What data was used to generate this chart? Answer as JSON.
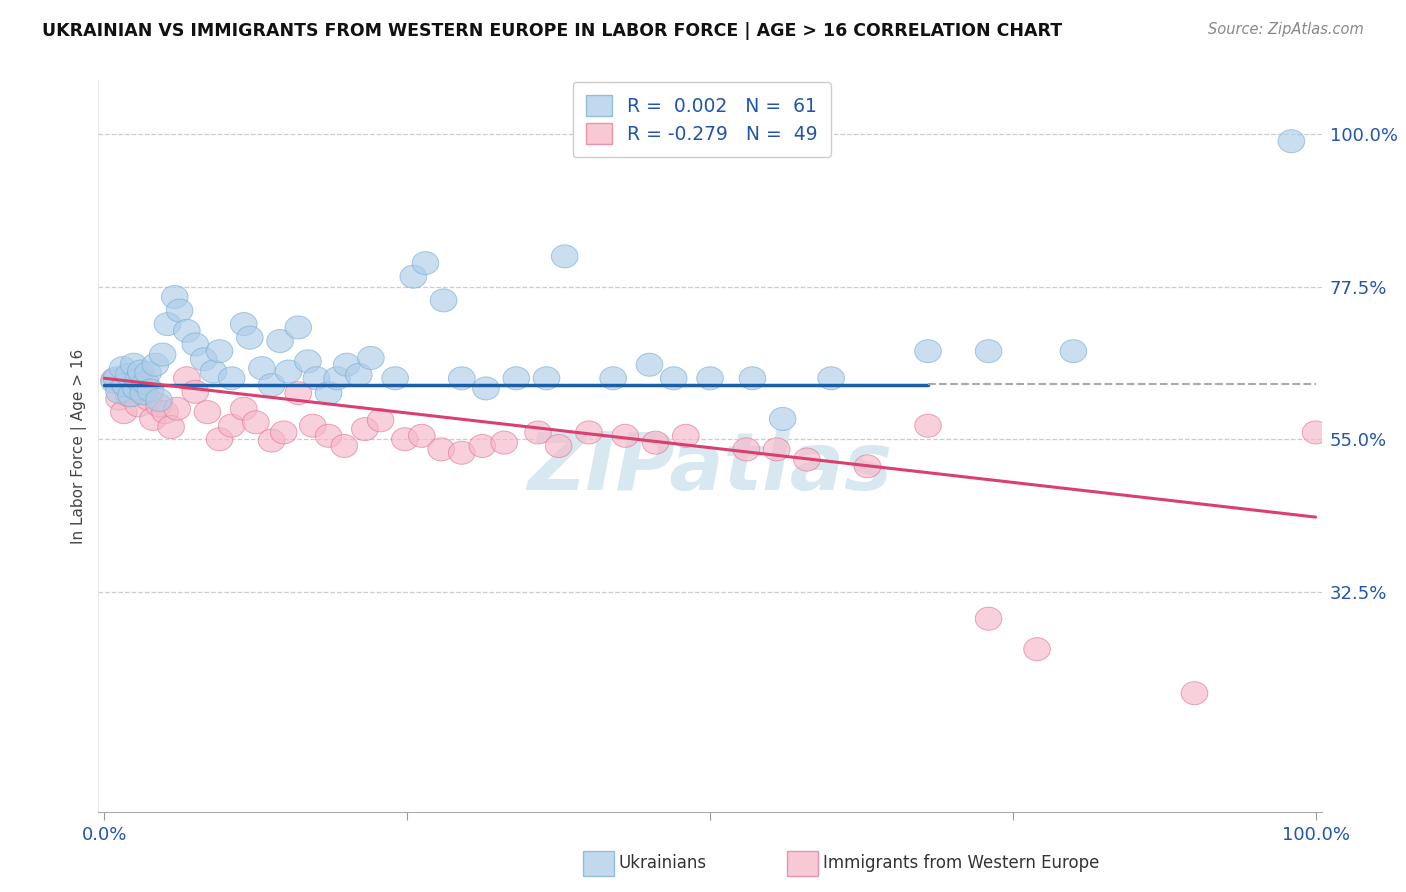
{
  "title": "UKRAINIAN VS IMMIGRANTS FROM WESTERN EUROPE IN LABOR FORCE | AGE > 16 CORRELATION CHART",
  "source": "Source: ZipAtlas.com",
  "ylabel": "In Labor Force | Age > 16",
  "xlim": [
    0.0,
    1.0
  ],
  "ylim": [
    0.0,
    1.0
  ],
  "ytick_labels_right": [
    "32.5%",
    "55.0%",
    "77.5%",
    "100.0%"
  ],
  "ytick_vals_right": [
    0.325,
    0.55,
    0.775,
    1.0
  ],
  "dashed_hline_y": 0.63,
  "blue_R": "0.002",
  "blue_N": "61",
  "pink_R": "-0.279",
  "pink_N": "49",
  "blue_fill": "#aecde8",
  "blue_edge": "#7aaed4",
  "pink_fill": "#f5b8c8",
  "pink_edge": "#e07898",
  "blue_line_color": "#1a5fa8",
  "pink_line_color": "#d94070",
  "blue_line_y": [
    0.63,
    0.632
  ],
  "pink_line_y": [
    0.64,
    0.435
  ],
  "legend_label_blue": "Ukrainians",
  "legend_label_pink": "Immigrants from Western Europe",
  "blue_pts": [
    [
      0.008,
      0.635
    ],
    [
      0.01,
      0.64
    ],
    [
      0.012,
      0.62
    ],
    [
      0.015,
      0.655
    ],
    [
      0.017,
      0.63
    ],
    [
      0.02,
      0.645
    ],
    [
      0.022,
      0.615
    ],
    [
      0.024,
      0.66
    ],
    [
      0.026,
      0.625
    ],
    [
      0.028,
      0.638
    ],
    [
      0.03,
      0.65
    ],
    [
      0.032,
      0.618
    ],
    [
      0.034,
      0.633
    ],
    [
      0.036,
      0.648
    ],
    [
      0.038,
      0.622
    ],
    [
      0.042,
      0.66
    ],
    [
      0.045,
      0.608
    ],
    [
      0.048,
      0.675
    ],
    [
      0.052,
      0.72
    ],
    [
      0.058,
      0.76
    ],
    [
      0.062,
      0.74
    ],
    [
      0.068,
      0.71
    ],
    [
      0.075,
      0.69
    ],
    [
      0.082,
      0.668
    ],
    [
      0.09,
      0.65
    ],
    [
      0.095,
      0.68
    ],
    [
      0.105,
      0.64
    ],
    [
      0.115,
      0.72
    ],
    [
      0.12,
      0.7
    ],
    [
      0.13,
      0.655
    ],
    [
      0.138,
      0.63
    ],
    [
      0.145,
      0.695
    ],
    [
      0.152,
      0.65
    ],
    [
      0.16,
      0.715
    ],
    [
      0.168,
      0.665
    ],
    [
      0.175,
      0.64
    ],
    [
      0.185,
      0.618
    ],
    [
      0.192,
      0.64
    ],
    [
      0.2,
      0.66
    ],
    [
      0.21,
      0.645
    ],
    [
      0.22,
      0.67
    ],
    [
      0.24,
      0.64
    ],
    [
      0.255,
      0.79
    ],
    [
      0.265,
      0.81
    ],
    [
      0.28,
      0.755
    ],
    [
      0.295,
      0.64
    ],
    [
      0.315,
      0.625
    ],
    [
      0.34,
      0.64
    ],
    [
      0.365,
      0.64
    ],
    [
      0.38,
      0.82
    ],
    [
      0.42,
      0.64
    ],
    [
      0.45,
      0.66
    ],
    [
      0.47,
      0.64
    ],
    [
      0.5,
      0.64
    ],
    [
      0.535,
      0.64
    ],
    [
      0.56,
      0.58
    ],
    [
      0.6,
      0.64
    ],
    [
      0.68,
      0.68
    ],
    [
      0.73,
      0.68
    ],
    [
      0.8,
      0.68
    ],
    [
      0.98,
      0.99
    ]
  ],
  "pink_pts": [
    [
      0.008,
      0.638
    ],
    [
      0.012,
      0.61
    ],
    [
      0.016,
      0.59
    ],
    [
      0.02,
      0.615
    ],
    [
      0.024,
      0.63
    ],
    [
      0.028,
      0.6
    ],
    [
      0.032,
      0.62
    ],
    [
      0.036,
      0.61
    ],
    [
      0.04,
      0.58
    ],
    [
      0.045,
      0.6
    ],
    [
      0.05,
      0.59
    ],
    [
      0.055,
      0.568
    ],
    [
      0.06,
      0.595
    ],
    [
      0.068,
      0.64
    ],
    [
      0.075,
      0.62
    ],
    [
      0.085,
      0.59
    ],
    [
      0.095,
      0.55
    ],
    [
      0.105,
      0.57
    ],
    [
      0.115,
      0.595
    ],
    [
      0.125,
      0.575
    ],
    [
      0.138,
      0.548
    ],
    [
      0.148,
      0.56
    ],
    [
      0.16,
      0.618
    ],
    [
      0.172,
      0.57
    ],
    [
      0.185,
      0.555
    ],
    [
      0.198,
      0.54
    ],
    [
      0.215,
      0.565
    ],
    [
      0.228,
      0.578
    ],
    [
      0.248,
      0.55
    ],
    [
      0.262,
      0.555
    ],
    [
      0.278,
      0.535
    ],
    [
      0.295,
      0.53
    ],
    [
      0.312,
      0.54
    ],
    [
      0.33,
      0.545
    ],
    [
      0.358,
      0.56
    ],
    [
      0.375,
      0.54
    ],
    [
      0.4,
      0.56
    ],
    [
      0.43,
      0.555
    ],
    [
      0.455,
      0.545
    ],
    [
      0.48,
      0.555
    ],
    [
      0.53,
      0.535
    ],
    [
      0.555,
      0.535
    ],
    [
      0.58,
      0.52
    ],
    [
      0.63,
      0.51
    ],
    [
      0.68,
      0.57
    ],
    [
      0.73,
      0.285
    ],
    [
      0.77,
      0.24
    ],
    [
      0.9,
      0.175
    ],
    [
      1.0,
      0.56
    ]
  ],
  "watermark_text": "ZIPatlas",
  "watermark_color": "#d8e8f0",
  "watermark_fontsize": 58
}
